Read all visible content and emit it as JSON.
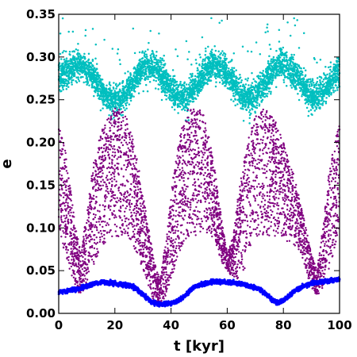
{
  "chart_data": {
    "type": "scatter",
    "title": "",
    "xlabel": "t [kyr]",
    "ylabel": "e",
    "xlim": [
      0,
      100
    ],
    "ylim": [
      0,
      0.35
    ],
    "xticks": [
      0,
      20,
      40,
      60,
      80,
      100
    ],
    "yticks": [
      0.0,
      0.05,
      0.1,
      0.15,
      0.2,
      0.25,
      0.3,
      0.35
    ],
    "xtick_labels": [
      "0",
      "20",
      "40",
      "60",
      "80",
      "100"
    ],
    "ytick_labels": [
      "0.00",
      "0.05",
      "0.10",
      "0.15",
      "0.20",
      "0.25",
      "0.30",
      "0.35"
    ],
    "grid": false,
    "legend": "none",
    "series": [
      {
        "color": "#00bfbf",
        "x": [
          0,
          2,
          4,
          6,
          8,
          10,
          12,
          14,
          16,
          18,
          20,
          22,
          24,
          26,
          28,
          30,
          32,
          34,
          36,
          38,
          40,
          42,
          44,
          46,
          48,
          50,
          52,
          54,
          56,
          58,
          60,
          62,
          64,
          66,
          68,
          70,
          72,
          74,
          76,
          78,
          80,
          82,
          84,
          86,
          88,
          90,
          92,
          94,
          96,
          98,
          100
        ],
        "y_center": [
          0.275,
          0.28,
          0.285,
          0.29,
          0.29,
          0.285,
          0.278,
          0.268,
          0.258,
          0.252,
          0.25,
          0.252,
          0.258,
          0.268,
          0.28,
          0.288,
          0.29,
          0.288,
          0.282,
          0.272,
          0.262,
          0.255,
          0.252,
          0.255,
          0.262,
          0.272,
          0.282,
          0.29,
          0.292,
          0.288,
          0.28,
          0.27,
          0.26,
          0.254,
          0.252,
          0.255,
          0.262,
          0.272,
          0.282,
          0.29,
          0.292,
          0.288,
          0.28,
          0.272,
          0.262,
          0.256,
          0.255,
          0.26,
          0.268,
          0.276,
          0.282
        ],
        "y_spread": 0.03
      },
      {
        "color": "#800080",
        "x": [
          0,
          2,
          4,
          6,
          8,
          10,
          12,
          14,
          16,
          18,
          20,
          22,
          24,
          26,
          28,
          30,
          32,
          34,
          36,
          38,
          40,
          42,
          44,
          46,
          48,
          50,
          52,
          54,
          56,
          58,
          60,
          62,
          64,
          66,
          68,
          70,
          72,
          74,
          76,
          78,
          80,
          82,
          84,
          86,
          88,
          90,
          92,
          94,
          96,
          98,
          100
        ],
        "y_min": [
          0.1,
          0.07,
          0.05,
          0.03,
          0.02,
          0.03,
          0.05,
          0.07,
          0.08,
          0.09,
          0.09,
          0.09,
          0.09,
          0.08,
          0.07,
          0.05,
          0.03,
          0.01,
          0.01,
          0.02,
          0.04,
          0.06,
          0.08,
          0.09,
          0.09,
          0.09,
          0.09,
          0.09,
          0.08,
          0.06,
          0.05,
          0.04,
          0.04,
          0.05,
          0.07,
          0.09,
          0.09,
          0.09,
          0.09,
          0.09,
          0.09,
          0.08,
          0.08,
          0.07,
          0.05,
          0.03,
          0.02,
          0.03,
          0.05,
          0.07,
          0.1
        ],
        "y_max": [
          0.22,
          0.2,
          0.15,
          0.1,
          0.07,
          0.12,
          0.17,
          0.2,
          0.22,
          0.23,
          0.24,
          0.24,
          0.23,
          0.21,
          0.18,
          0.14,
          0.1,
          0.06,
          0.04,
          0.08,
          0.14,
          0.19,
          0.22,
          0.24,
          0.24,
          0.24,
          0.23,
          0.2,
          0.16,
          0.11,
          0.07,
          0.09,
          0.14,
          0.18,
          0.21,
          0.23,
          0.24,
          0.24,
          0.23,
          0.22,
          0.2,
          0.18,
          0.16,
          0.13,
          0.1,
          0.07,
          0.05,
          0.1,
          0.16,
          0.2,
          0.22
        ]
      },
      {
        "color": "#0000ff",
        "x": [
          0,
          2,
          4,
          6,
          8,
          10,
          12,
          14,
          16,
          18,
          20,
          22,
          24,
          26,
          28,
          30,
          32,
          34,
          36,
          38,
          40,
          42,
          44,
          46,
          48,
          50,
          52,
          54,
          56,
          58,
          60,
          62,
          64,
          66,
          68,
          70,
          72,
          74,
          76,
          78,
          80,
          82,
          84,
          86,
          88,
          90,
          92,
          94,
          96,
          98,
          100
        ],
        "y_center": [
          0.025,
          0.026,
          0.027,
          0.028,
          0.03,
          0.032,
          0.034,
          0.036,
          0.037,
          0.036,
          0.035,
          0.034,
          0.033,
          0.032,
          0.028,
          0.022,
          0.016,
          0.012,
          0.011,
          0.011,
          0.012,
          0.014,
          0.018,
          0.024,
          0.03,
          0.033,
          0.035,
          0.036,
          0.037,
          0.037,
          0.036,
          0.036,
          0.035,
          0.034,
          0.032,
          0.03,
          0.027,
          0.022,
          0.016,
          0.012,
          0.015,
          0.02,
          0.026,
          0.03,
          0.033,
          0.035,
          0.036,
          0.037,
          0.038,
          0.039,
          0.04
        ],
        "y_spread": 0.004
      }
    ]
  }
}
